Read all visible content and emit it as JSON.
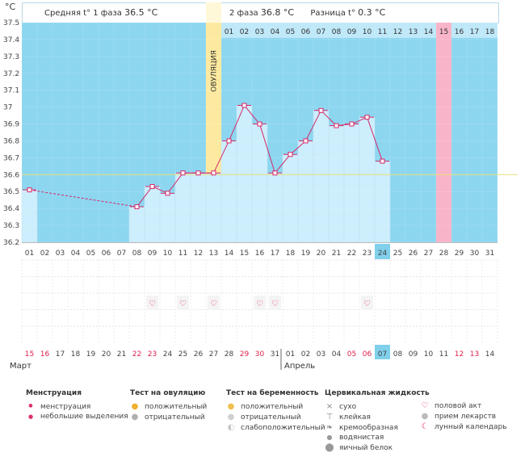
{
  "chart_data": {
    "type": "line",
    "title": "°C",
    "ylabel": "°C",
    "ylim": [
      36.2,
      37.5
    ],
    "y_ticks": [
      "37.5",
      "37.4",
      "37.3",
      "37.2",
      "37.1",
      "37",
      "36.9",
      "36.8",
      "36.7",
      "36.6",
      "36.5",
      "36.4",
      "36.3",
      "36.2"
    ],
    "cycle_days": [
      "01",
      "02",
      "03",
      "04",
      "05",
      "06",
      "07",
      "08",
      "09",
      "10",
      "11",
      "12",
      "13",
      "14",
      "15",
      "16",
      "17",
      "18",
      "19",
      "20",
      "21",
      "22",
      "23",
      "24",
      "25",
      "26",
      "27",
      "28",
      "29",
      "30",
      "31"
    ],
    "phase2_days": [
      "01",
      "02",
      "03",
      "04",
      "05",
      "06",
      "07",
      "08",
      "09",
      "10",
      "11",
      "12",
      "13",
      "14",
      "15",
      "16",
      "17",
      "18"
    ],
    "calendar_dates": [
      "15",
      "16",
      "17",
      "18",
      "19",
      "20",
      "21",
      "22",
      "23",
      "24",
      "25",
      "26",
      "27",
      "28",
      "29",
      "30",
      "31",
      "01",
      "02",
      "03",
      "04",
      "05",
      "06",
      "07",
      "08",
      "09",
      "10",
      "11",
      "12",
      "13",
      "14"
    ],
    "red_date_indices": [
      0,
      1,
      7,
      8,
      14,
      15,
      21,
      22,
      28,
      29
    ],
    "temperatures": [
      36.51,
      null,
      null,
      null,
      null,
      null,
      null,
      36.41,
      36.53,
      36.49,
      36.61,
      36.61,
      36.61,
      36.8,
      37.01,
      36.9,
      36.61,
      36.72,
      36.8,
      36.98,
      36.89,
      36.9,
      36.94,
      36.68
    ],
    "cover_line": 36.6,
    "ovulation_day_index": 12,
    "ovulation_label": "ОВУЛЯЦИЯ",
    "today_index": 23,
    "today_date": "07",
    "highlight_phase2_index": 14,
    "intercourse_days": [
      8,
      10,
      12,
      15,
      16,
      22
    ],
    "months": [
      "Март",
      "Апрель"
    ]
  },
  "header": {
    "phase1_label": "Средняя t° 1 фаза",
    "phase1_value": "36.5 °C",
    "phase2_label": "2 фаза",
    "phase2_value": "36.8 °C",
    "diff_label": "Разница t°",
    "diff_value": "0.3 °C"
  },
  "legend": {
    "menstruation": {
      "title": "Менструация",
      "items": [
        "менструация",
        "небольшие выделения"
      ]
    },
    "ovulation_test": {
      "title": "Тест на овуляцию",
      "items": [
        "положительный",
        "отрицательный"
      ]
    },
    "pregnancy_test": {
      "title": "Тест на беременность",
      "items": [
        "положительный",
        "отрицательный",
        "слабоположительный"
      ]
    },
    "cervical": {
      "title": "Цервикальная жидкость",
      "items": [
        "сухо",
        "клейкая",
        "кремообразная",
        "водянистая",
        "яичный белок"
      ]
    },
    "other": {
      "items": [
        "половой акт",
        "прием лекарств",
        "лунный календарь"
      ]
    }
  },
  "colors": {
    "sky": "#8dd6f0",
    "bar": "#cdeefc",
    "line": "#d4286a",
    "ovulation": "#fdeaa0",
    "highlight": "#f8b4c8",
    "cover": "#e8e07a",
    "today": "#80d0ec"
  }
}
